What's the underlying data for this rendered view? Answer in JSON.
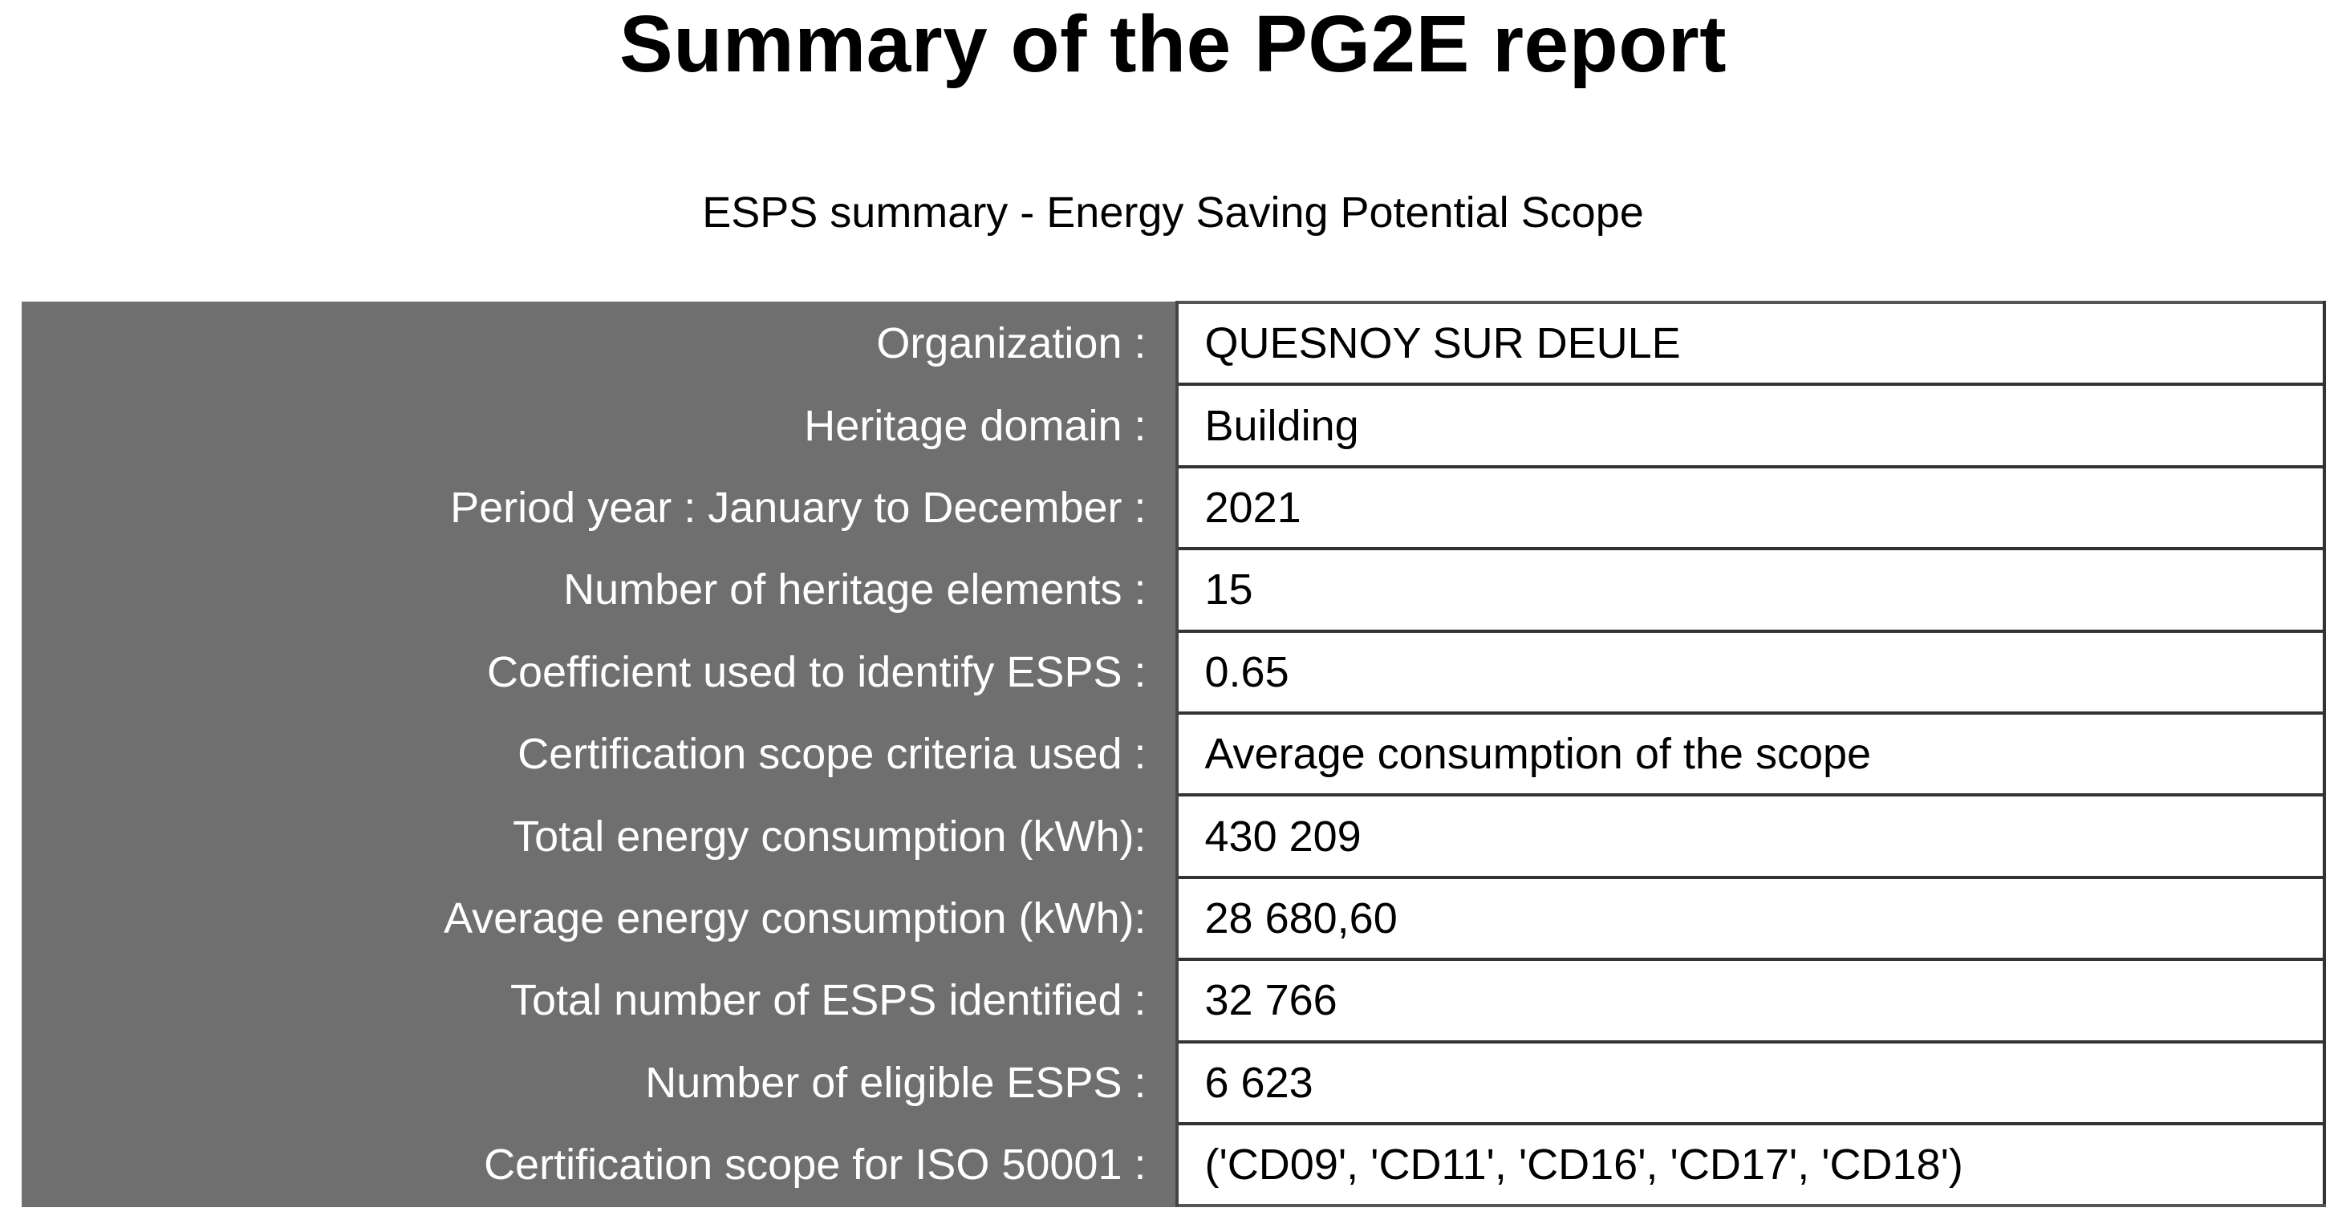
{
  "report": {
    "title": "Summary of the PG2E report",
    "subtitle": "ESPS summary - Energy Saving Potential Scope"
  },
  "summary": {
    "rows": [
      {
        "label": "Organization :",
        "value": "QUESNOY SUR DEULE"
      },
      {
        "label": "Heritage domain :",
        "value": "Building"
      },
      {
        "label": "Period year : January to December :",
        "value": "2021"
      },
      {
        "label": "Number of heritage elements :",
        "value": "15"
      },
      {
        "label": "Coefficient used to identify ESPS :",
        "value": "0.65"
      },
      {
        "label": "Certification scope criteria used :",
        "value": "Average consumption of the scope"
      },
      {
        "label": "Total energy consumption (kWh):",
        "value": "430 209"
      },
      {
        "label": "Average energy consumption (kWh):",
        "value": "28 680,60"
      },
      {
        "label": "Total number of ESPS identified :",
        "value": "32 766"
      },
      {
        "label": "Number of eligible ESPS :",
        "value": "6 623"
      },
      {
        "label": "Certification scope for ISO 50001 :",
        "value": "('CD09', 'CD11', 'CD16', 'CD17', 'CD18')"
      }
    ]
  },
  "colors": {
    "label_background": "#6f6f6f",
    "label_text": "#ffffff",
    "value_background": "#ffffff",
    "value_text": "#000000"
  }
}
